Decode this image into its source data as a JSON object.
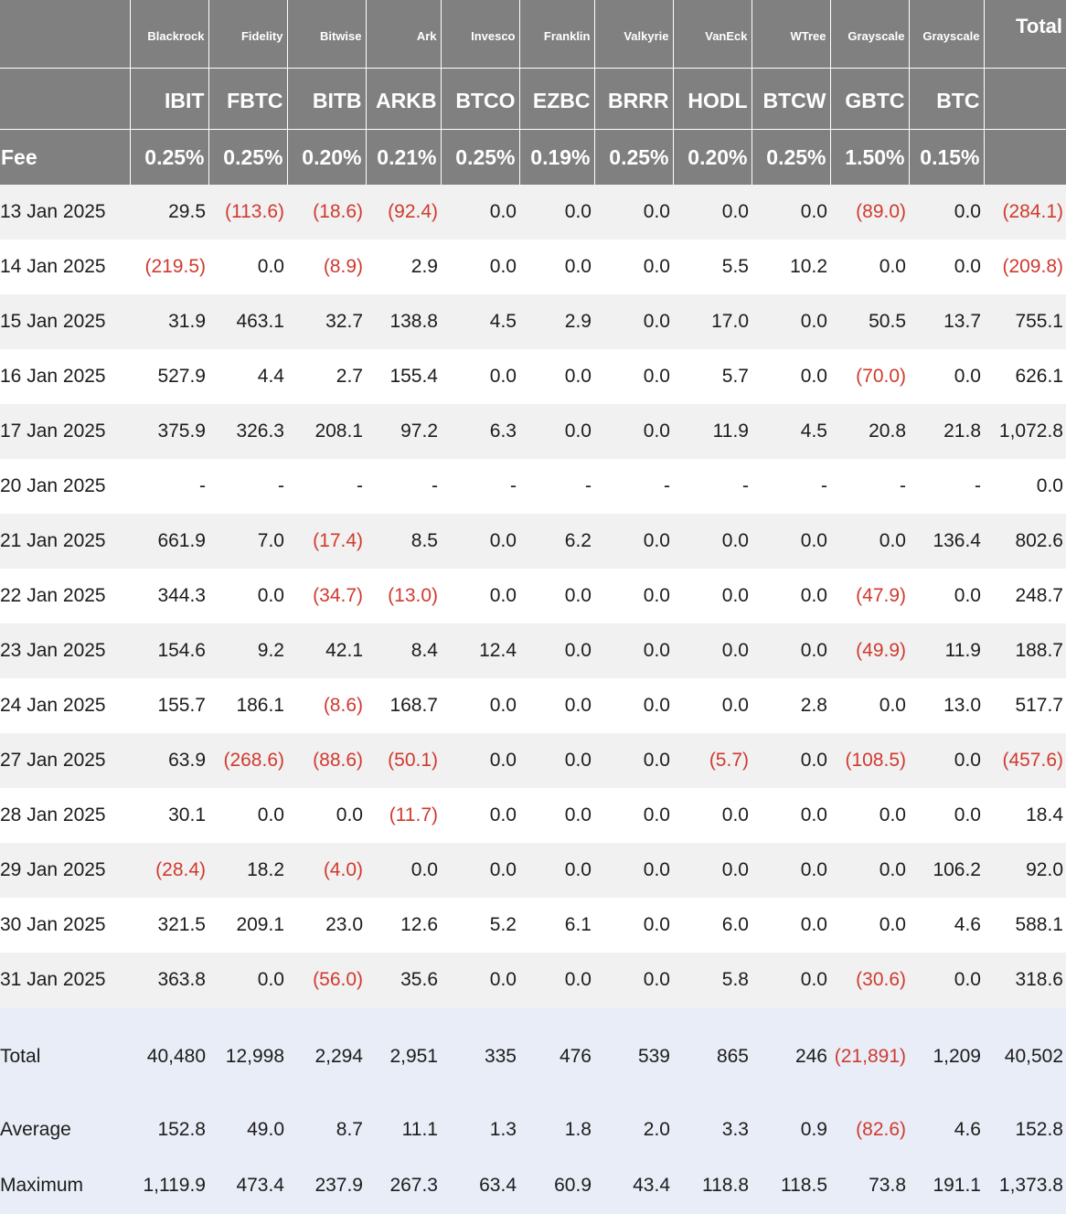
{
  "header": {
    "corner": "",
    "issuers": [
      "Blackrock",
      "Fidelity",
      "Bitwise",
      "Ark",
      "Invesco",
      "Franklin",
      "Valkyrie",
      "VanEck",
      "WTree",
      "Grayscale",
      "Grayscale"
    ],
    "total_label": "Total",
    "tickers": [
      "IBIT",
      "FBTC",
      "BITB",
      "ARKB",
      "BTCO",
      "EZBC",
      "BRRR",
      "HODL",
      "BTCW",
      "GBTC",
      "BTC"
    ],
    "fee_label": "Fee",
    "fees": [
      "0.25%",
      "0.25%",
      "0.20%",
      "0.21%",
      "0.25%",
      "0.19%",
      "0.25%",
      "0.20%",
      "0.25%",
      "1.50%",
      "0.15%"
    ]
  },
  "rows": [
    {
      "date": "13 Jan 2025",
      "v": [
        "29.5",
        "(113.6)",
        "(18.6)",
        "(92.4)",
        "0.0",
        "0.0",
        "0.0",
        "0.0",
        "0.0",
        "(89.0)",
        "0.0",
        "(284.1)"
      ]
    },
    {
      "date": "14 Jan 2025",
      "v": [
        "(219.5)",
        "0.0",
        "(8.9)",
        "2.9",
        "0.0",
        "0.0",
        "0.0",
        "5.5",
        "10.2",
        "0.0",
        "0.0",
        "(209.8)"
      ]
    },
    {
      "date": "15 Jan 2025",
      "v": [
        "31.9",
        "463.1",
        "32.7",
        "138.8",
        "4.5",
        "2.9",
        "0.0",
        "17.0",
        "0.0",
        "50.5",
        "13.7",
        "755.1"
      ]
    },
    {
      "date": "16 Jan 2025",
      "v": [
        "527.9",
        "4.4",
        "2.7",
        "155.4",
        "0.0",
        "0.0",
        "0.0",
        "5.7",
        "0.0",
        "(70.0)",
        "0.0",
        "626.1"
      ]
    },
    {
      "date": "17 Jan 2025",
      "v": [
        "375.9",
        "326.3",
        "208.1",
        "97.2",
        "6.3",
        "0.0",
        "0.0",
        "11.9",
        "4.5",
        "20.8",
        "21.8",
        "1,072.8"
      ]
    },
    {
      "date": "20 Jan 2025",
      "v": [
        "-",
        "-",
        "-",
        "-",
        "-",
        "-",
        "-",
        "-",
        "-",
        "-",
        "-",
        "0.0"
      ]
    },
    {
      "date": "21 Jan 2025",
      "v": [
        "661.9",
        "7.0",
        "(17.4)",
        "8.5",
        "0.0",
        "6.2",
        "0.0",
        "0.0",
        "0.0",
        "0.0",
        "136.4",
        "802.6"
      ]
    },
    {
      "date": "22 Jan 2025",
      "v": [
        "344.3",
        "0.0",
        "(34.7)",
        "(13.0)",
        "0.0",
        "0.0",
        "0.0",
        "0.0",
        "0.0",
        "(47.9)",
        "0.0",
        "248.7"
      ]
    },
    {
      "date": "23 Jan 2025",
      "v": [
        "154.6",
        "9.2",
        "42.1",
        "8.4",
        "12.4",
        "0.0",
        "0.0",
        "0.0",
        "0.0",
        "(49.9)",
        "11.9",
        "188.7"
      ]
    },
    {
      "date": "24 Jan 2025",
      "v": [
        "155.7",
        "186.1",
        "(8.6)",
        "168.7",
        "0.0",
        "0.0",
        "0.0",
        "0.0",
        "2.8",
        "0.0",
        "13.0",
        "517.7"
      ]
    },
    {
      "date": "27 Jan 2025",
      "v": [
        "63.9",
        "(268.6)",
        "(88.6)",
        "(50.1)",
        "0.0",
        "0.0",
        "0.0",
        "(5.7)",
        "0.0",
        "(108.5)",
        "0.0",
        "(457.6)"
      ]
    },
    {
      "date": "28 Jan 2025",
      "v": [
        "30.1",
        "0.0",
        "0.0",
        "(11.7)",
        "0.0",
        "0.0",
        "0.0",
        "0.0",
        "0.0",
        "0.0",
        "0.0",
        "18.4"
      ]
    },
    {
      "date": "29 Jan 2025",
      "v": [
        "(28.4)",
        "18.2",
        "(4.0)",
        "0.0",
        "0.0",
        "0.0",
        "0.0",
        "0.0",
        "0.0",
        "0.0",
        "106.2",
        "92.0"
      ]
    },
    {
      "date": "30 Jan 2025",
      "v": [
        "321.5",
        "209.1",
        "23.0",
        "12.6",
        "5.2",
        "6.1",
        "0.0",
        "6.0",
        "0.0",
        "0.0",
        "4.6",
        "588.1"
      ]
    },
    {
      "date": "31 Jan 2025",
      "v": [
        "363.8",
        "0.0",
        "(56.0)",
        "35.6",
        "0.0",
        "0.0",
        "0.0",
        "5.8",
        "0.0",
        "(30.6)",
        "0.0",
        "318.6"
      ]
    }
  ],
  "summary": [
    {
      "label": "Total",
      "v": [
        "40,480",
        "12,998",
        "2,294",
        "2,951",
        "335",
        "476",
        "539",
        "865",
        "246",
        "(21,891)",
        "1,209",
        "40,502"
      ]
    },
    {
      "label": "Average",
      "v": [
        "152.8",
        "49.0",
        "8.7",
        "11.1",
        "1.3",
        "1.8",
        "2.0",
        "3.3",
        "0.9",
        "(82.6)",
        "4.6",
        "152.8"
      ]
    },
    {
      "label": "Maximum",
      "v": [
        "1,119.9",
        "473.4",
        "237.9",
        "267.3",
        "63.4",
        "60.9",
        "43.4",
        "118.8",
        "118.5",
        "73.8",
        "191.1",
        "1,373.8"
      ]
    }
  ]
}
